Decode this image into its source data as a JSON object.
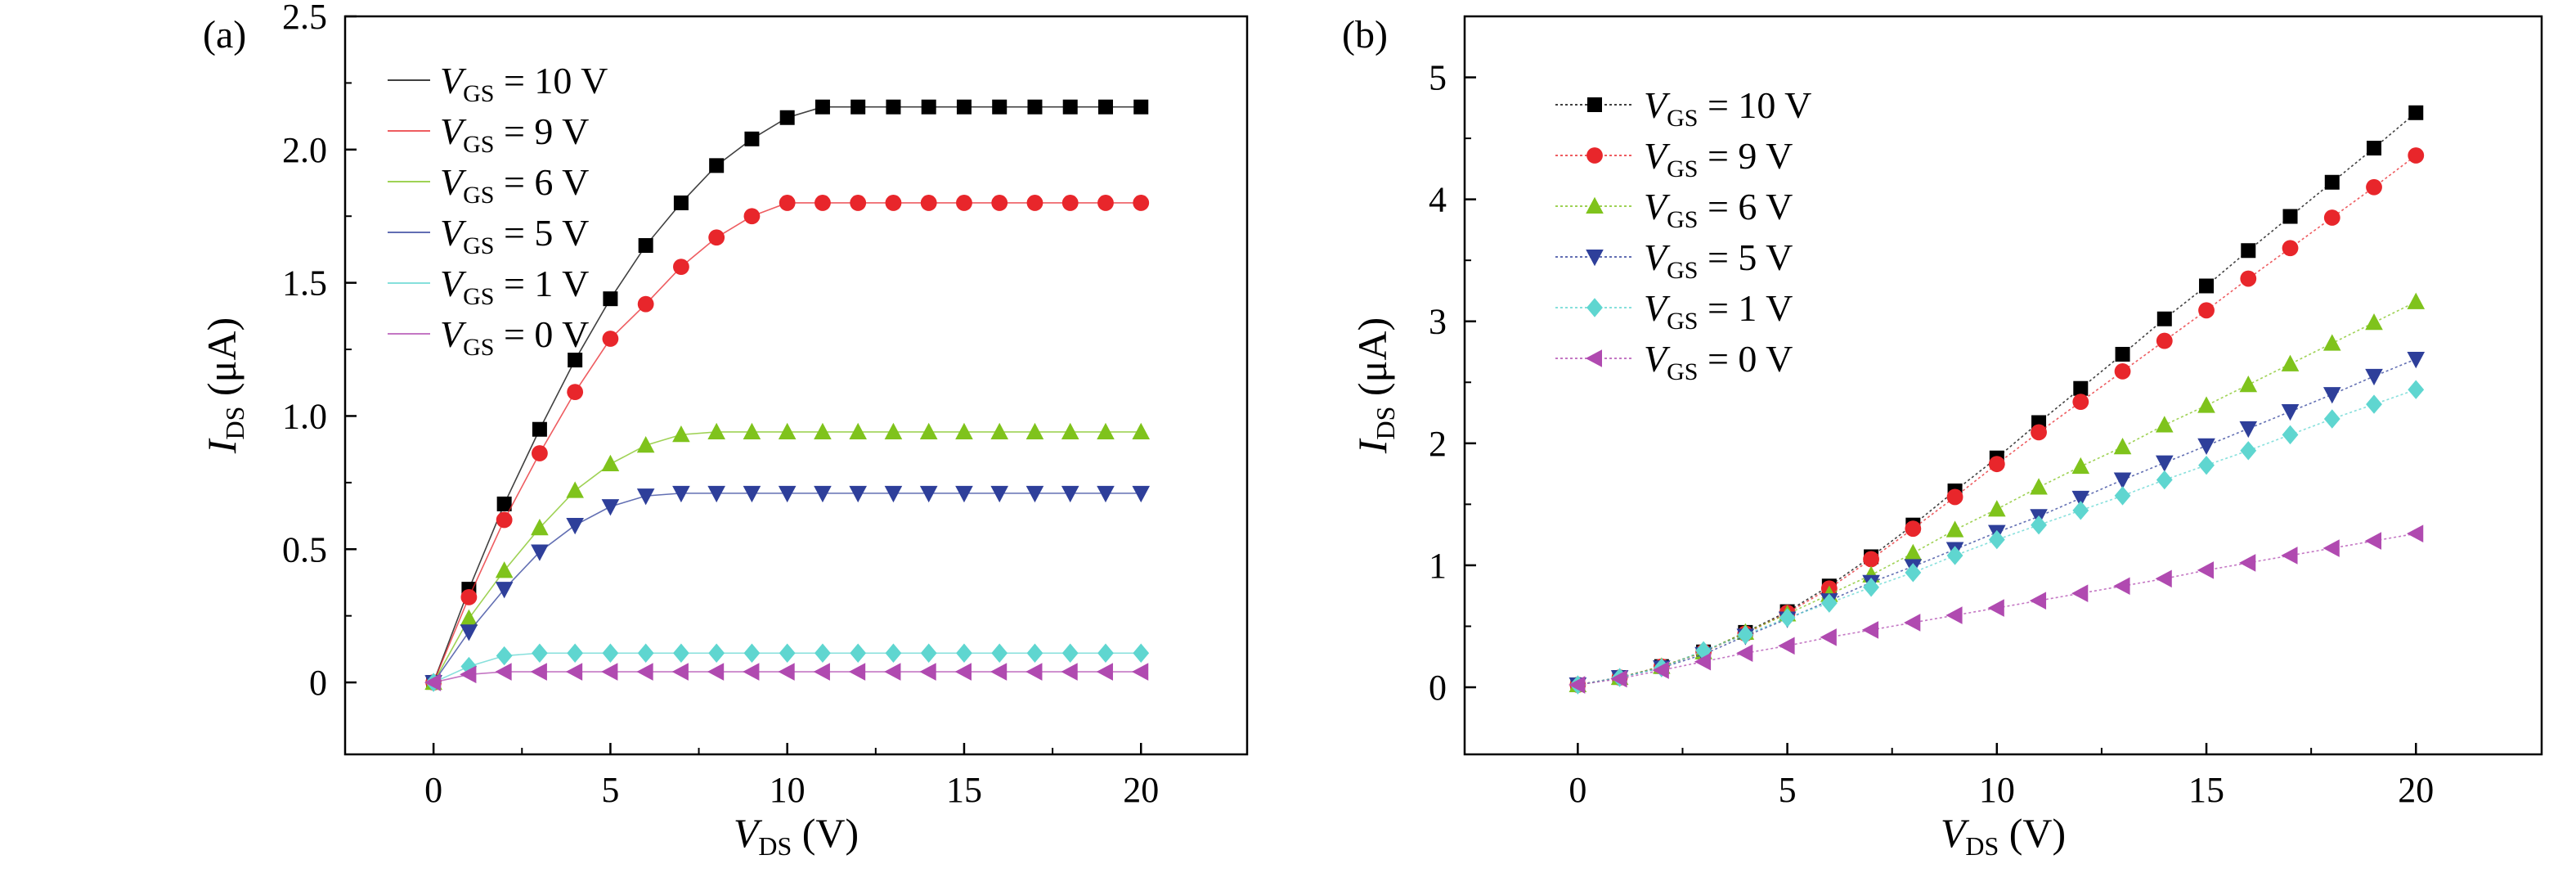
{
  "chart_data": [
    {
      "type": "line",
      "panel_label": "(a)",
      "xlabel": {
        "var": "V",
        "sub": "DS",
        "unit": " (V)"
      },
      "ylabel": {
        "var": "I",
        "sub": "DS",
        "unit": " (μA)"
      },
      "xlim": [
        -2.5,
        23
      ],
      "ylim": [
        -0.27,
        2.5
      ],
      "xticks": [
        0,
        5,
        10,
        15,
        20
      ],
      "xtick_labels": [
        "0",
        "5",
        "10",
        "15",
        "20"
      ],
      "yticks": [
        0,
        0.5,
        1.0,
        1.5,
        2.0,
        2.5
      ],
      "ytick_labels": [
        "0",
        "0.5",
        "1.0",
        "1.5",
        "2.0",
        "2.5"
      ],
      "grid": false,
      "legend_position": "top-left",
      "x": [
        0,
        1,
        2,
        3,
        4,
        5,
        6,
        7,
        8,
        9,
        10,
        11,
        12,
        13,
        14,
        15,
        16,
        17,
        18,
        19,
        20
      ],
      "series": [
        {
          "name": "V_GS = 10 V",
          "label_var": "V",
          "label_sub": "GS",
          "label_rest": " = 10 V",
          "color": "#000000",
          "marker": "square",
          "values": [
            0,
            0.35,
            0.67,
            0.95,
            1.21,
            1.44,
            1.64,
            1.8,
            1.94,
            2.04,
            2.12,
            2.16,
            2.16,
            2.16,
            2.16,
            2.16,
            2.16,
            2.16,
            2.16,
            2.16,
            2.16
          ]
        },
        {
          "name": "V_GS = 9 V",
          "label_var": "V",
          "label_sub": "GS",
          "label_rest": " = 9 V",
          "color": "#e8262b",
          "marker": "circle",
          "values": [
            0,
            0.32,
            0.61,
            0.86,
            1.09,
            1.29,
            1.42,
            1.56,
            1.67,
            1.75,
            1.8,
            1.8,
            1.8,
            1.8,
            1.8,
            1.8,
            1.8,
            1.8,
            1.8,
            1.8,
            1.8
          ]
        },
        {
          "name": "V_GS = 6 V",
          "label_var": "V",
          "label_sub": "GS",
          "label_rest": " = 6 V",
          "color": "#7fc31c",
          "marker": "triangle-up",
          "values": [
            0,
            0.24,
            0.42,
            0.58,
            0.72,
            0.82,
            0.89,
            0.93,
            0.94,
            0.94,
            0.94,
            0.94,
            0.94,
            0.94,
            0.94,
            0.94,
            0.94,
            0.94,
            0.94,
            0.94,
            0.94
          ]
        },
        {
          "name": "V_GS = 5 V",
          "label_var": "V",
          "label_sub": "GS",
          "label_rest": " = 5 V",
          "color": "#2e3f9a",
          "marker": "triangle-down",
          "values": [
            0,
            0.19,
            0.35,
            0.49,
            0.59,
            0.66,
            0.7,
            0.71,
            0.71,
            0.71,
            0.71,
            0.71,
            0.71,
            0.71,
            0.71,
            0.71,
            0.71,
            0.71,
            0.71,
            0.71,
            0.71
          ]
        },
        {
          "name": "V_GS = 1 V",
          "label_var": "V",
          "label_sub": "GS",
          "label_rest": " = 1 V",
          "color": "#5fd6d0",
          "marker": "diamond",
          "values": [
            0,
            0.06,
            0.1,
            0.11,
            0.11,
            0.11,
            0.11,
            0.11,
            0.11,
            0.11,
            0.11,
            0.11,
            0.11,
            0.11,
            0.11,
            0.11,
            0.11,
            0.11,
            0.11,
            0.11,
            0.11
          ]
        },
        {
          "name": "V_GS = 0 V",
          "label_var": "V",
          "label_sub": "GS",
          "label_rest": " = 0 V",
          "color": "#b04ab0",
          "marker": "triangle-left",
          "values": [
            0,
            0.03,
            0.04,
            0.04,
            0.04,
            0.04,
            0.04,
            0.04,
            0.04,
            0.04,
            0.04,
            0.04,
            0.04,
            0.04,
            0.04,
            0.04,
            0.04,
            0.04,
            0.04,
            0.04,
            0.04
          ]
        }
      ]
    },
    {
      "type": "line",
      "panel_label": "(b)",
      "xlabel": {
        "var": "V",
        "sub": "DS",
        "unit": " (V)"
      },
      "ylabel": {
        "var": "I",
        "sub": "DS",
        "unit": " (μA)"
      },
      "xlim": [
        -2.7,
        23
      ],
      "ylim": [
        -0.55,
        5.5
      ],
      "xticks": [
        0,
        5,
        10,
        15,
        20
      ],
      "xtick_labels": [
        "0",
        "5",
        "10",
        "15",
        "20"
      ],
      "yticks": [
        0,
        1,
        2,
        3,
        4,
        5
      ],
      "ytick_labels": [
        "0",
        "1",
        "2",
        "3",
        "4",
        "5"
      ],
      "grid": false,
      "legend_position": "top-left",
      "x": [
        0,
        1,
        2,
        3,
        4,
        5,
        6,
        7,
        8,
        9,
        10,
        11,
        12,
        13,
        14,
        15,
        16,
        17,
        18,
        19,
        20
      ],
      "series": [
        {
          "name": "V_GS = 10 V",
          "label_var": "V",
          "label_sub": "GS",
          "label_rest": " = 10 V",
          "color": "#000000",
          "marker": "square",
          "values": [
            0.02,
            0.08,
            0.17,
            0.29,
            0.45,
            0.62,
            0.83,
            1.07,
            1.33,
            1.61,
            1.88,
            2.17,
            2.45,
            2.73,
            3.02,
            3.29,
            3.58,
            3.86,
            4.14,
            4.42,
            4.71
          ]
        },
        {
          "name": "V_GS = 9 V",
          "label_var": "V",
          "label_sub": "GS",
          "label_rest": " = 9 V",
          "color": "#e8262b",
          "marker": "circle",
          "values": [
            0.02,
            0.08,
            0.17,
            0.29,
            0.44,
            0.61,
            0.81,
            1.05,
            1.3,
            1.56,
            1.83,
            2.09,
            2.34,
            2.59,
            2.84,
            3.09,
            3.35,
            3.6,
            3.85,
            4.1,
            4.36
          ]
        },
        {
          "name": "V_GS = 6 V",
          "label_var": "V",
          "label_sub": "GS",
          "label_rest": " = 6 V",
          "color": "#7fc31c",
          "marker": "triangle-up",
          "values": [
            0.02,
            0.08,
            0.17,
            0.29,
            0.45,
            0.6,
            0.76,
            0.92,
            1.1,
            1.29,
            1.46,
            1.64,
            1.81,
            1.97,
            2.15,
            2.31,
            2.48,
            2.65,
            2.82,
            2.99,
            3.16
          ]
        },
        {
          "name": "V_GS = 5 V",
          "label_var": "V",
          "label_sub": "GS",
          "label_rest": " = 5 V",
          "color": "#2e3f9a",
          "marker": "triangle-down",
          "values": [
            0.02,
            0.08,
            0.16,
            0.27,
            0.42,
            0.56,
            0.71,
            0.86,
            0.99,
            1.13,
            1.27,
            1.4,
            1.55,
            1.7,
            1.84,
            1.98,
            2.12,
            2.26,
            2.4,
            2.55,
            2.69
          ]
        },
        {
          "name": "V_GS = 1 V",
          "label_var": "V",
          "label_sub": "GS",
          "label_rest": " = 1 V",
          "color": "#5fd6d0",
          "marker": "diamond",
          "values": [
            0.02,
            0.08,
            0.16,
            0.3,
            0.43,
            0.57,
            0.69,
            0.82,
            0.94,
            1.08,
            1.21,
            1.33,
            1.45,
            1.57,
            1.7,
            1.82,
            1.94,
            2.07,
            2.2,
            2.32,
            2.44
          ]
        },
        {
          "name": "V_GS = 0 V",
          "label_var": "V",
          "label_sub": "GS",
          "label_rest": " = 0 V",
          "color": "#b04ab0",
          "marker": "triangle-left",
          "values": [
            0.02,
            0.07,
            0.14,
            0.21,
            0.28,
            0.34,
            0.41,
            0.47,
            0.53,
            0.59,
            0.65,
            0.71,
            0.77,
            0.83,
            0.89,
            0.96,
            1.02,
            1.08,
            1.14,
            1.2,
            1.26
          ]
        }
      ]
    }
  ]
}
